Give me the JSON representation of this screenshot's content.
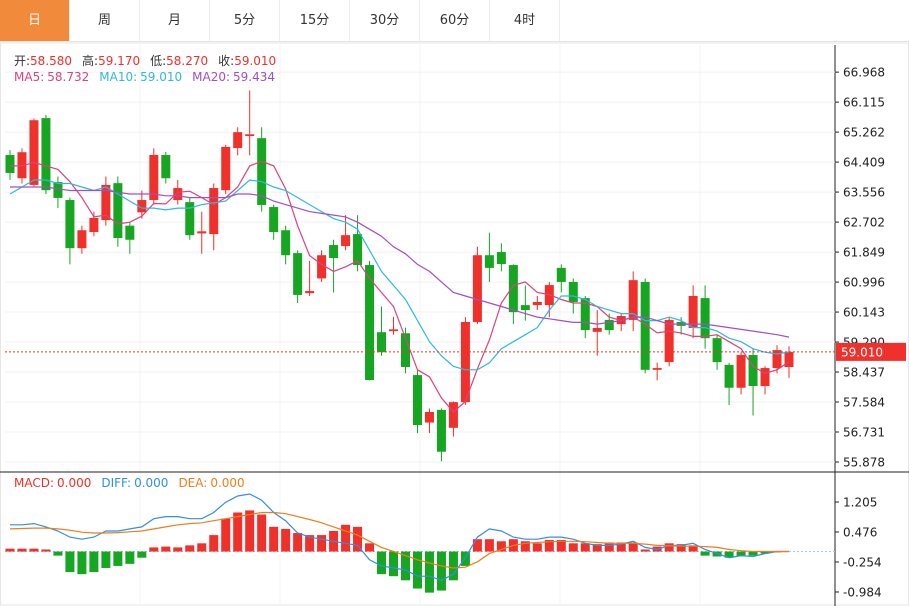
{
  "tabs": [
    "日",
    "周",
    "月",
    "5分",
    "15分",
    "30分",
    "60分",
    "4时"
  ],
  "quote": [
    {
      "label": "开:",
      "value": "58.580"
    },
    {
      "label": "高:",
      "value": "59.170"
    },
    {
      "label": "低:",
      "value": "58.270"
    },
    {
      "label": "收:",
      "value": "59.010"
    }
  ],
  "chart_data": [
    {
      "type": "candlestick",
      "up_color": "#f0302a",
      "down_color": "#16a622",
      "open": [
        64.61,
        63.95,
        63.76,
        65.66,
        63.84,
        63.33,
        61.96,
        62.42,
        62.76,
        63.81,
        62.6,
        62.98,
        63.33,
        64.61,
        63.33,
        63.27,
        62.38,
        62.36,
        63.61,
        64.81,
        65.15,
        65.09,
        63.13,
        62.47,
        61.82,
        60.68,
        61.1,
        62.05,
        62.02,
        62.36,
        61.48,
        59.57,
        59.6,
        59.54,
        58.35,
        57.0,
        57.36,
        56.85,
        57.58,
        59.86,
        61.76,
        61.85,
        61.48,
        60.34,
        60.34,
        60.34,
        61.4,
        61.0,
        60.54,
        59.58,
        59.92,
        59.8,
        59.92,
        61.0,
        58.5,
        58.72,
        59.86,
        59.69,
        60.54,
        59.4,
        58.64,
        57.99,
        58.92,
        58.04,
        58.55,
        58.58
      ],
      "high": [
        64.75,
        64.8,
        65.65,
        65.75,
        64.0,
        63.4,
        62.6,
        63.0,
        64.0,
        64.0,
        62.7,
        63.6,
        64.8,
        64.7,
        63.9,
        63.4,
        63.0,
        63.8,
        64.9,
        65.4,
        66.45,
        65.4,
        63.2,
        62.6,
        61.9,
        61.6,
        61.9,
        62.2,
        62.9,
        62.9,
        61.6,
        60.3,
        60.0,
        59.7,
        58.5,
        57.4,
        57.4,
        57.6,
        60.0,
        62.0,
        62.4,
        62.1,
        61.5,
        60.9,
        60.6,
        61.0,
        61.5,
        61.1,
        60.6,
        60.2,
        60.1,
        60.1,
        61.3,
        61.1,
        58.7,
        60.0,
        60.0,
        60.9,
        60.9,
        59.5,
        58.7,
        59.0,
        59.1,
        58.6,
        59.2,
        59.17
      ],
      "low": [
        63.9,
        63.8,
        63.7,
        63.5,
        63.1,
        61.5,
        61.8,
        62.3,
        62.6,
        62.0,
        61.8,
        62.8,
        63.2,
        63.8,
        63.2,
        62.2,
        61.8,
        61.9,
        63.5,
        64.6,
        64.6,
        63.0,
        62.2,
        61.5,
        60.4,
        60.6,
        61.0,
        60.7,
        61.9,
        61.3,
        58.2,
        58.9,
        59.5,
        58.4,
        56.7,
        56.7,
        55.9,
        56.6,
        57.5,
        59.8,
        61.0,
        61.3,
        59.8,
        59.9,
        60.2,
        60.0,
        60.7,
        60.1,
        59.4,
        58.9,
        59.5,
        59.6,
        59.6,
        58.4,
        58.2,
        58.6,
        59.5,
        59.4,
        59.1,
        58.5,
        57.5,
        57.8,
        57.2,
        57.8,
        58.4,
        58.27
      ],
      "close": [
        64.1,
        64.69,
        65.6,
        63.61,
        63.39,
        61.96,
        62.47,
        62.82,
        63.76,
        62.25,
        62.2,
        63.33,
        64.61,
        63.95,
        63.67,
        62.33,
        62.44,
        63.67,
        64.84,
        65.26,
        65.2,
        63.19,
        62.42,
        61.76,
        60.63,
        60.74,
        61.76,
        61.68,
        62.33,
        61.48,
        58.21,
        59.0,
        59.65,
        58.58,
        56.93,
        57.3,
        56.17,
        57.58,
        59.86,
        61.76,
        61.4,
        61.51,
        60.14,
        60.2,
        60.43,
        60.91,
        61.0,
        60.43,
        59.63,
        59.69,
        59.63,
        60.03,
        61.05,
        58.5,
        58.55,
        59.92,
        59.75,
        60.6,
        59.4,
        58.72,
        57.99,
        58.92,
        58.04,
        58.55,
        59.06,
        59.01
      ],
      "series": [
        {
          "name": "MA5:",
          "value_label": "58.732",
          "color": "#e0407f",
          "values": [
            64.3,
            64.3,
            64.4,
            64.3,
            64.2,
            63.85,
            63.4,
            62.85,
            62.9,
            62.65,
            62.7,
            62.87,
            63.23,
            63.22,
            63.55,
            63.58,
            63.4,
            63.2,
            63.4,
            63.7,
            64.3,
            64.43,
            64.3,
            63.65,
            62.6,
            61.75,
            61.5,
            61.3,
            61.43,
            61.6,
            61.1,
            60.7,
            60.3,
            59.4,
            58.5,
            58.3,
            57.7,
            57.3,
            57.6,
            58.53,
            59.35,
            60.4,
            60.9,
            61.0,
            60.7,
            60.64,
            60.5,
            60.4,
            60.4,
            60.3,
            60.0,
            59.9,
            60.0,
            59.8,
            59.55,
            59.6,
            59.55,
            59.45,
            59.45,
            59.5,
            59.3,
            59.1,
            58.6,
            58.4,
            58.5,
            58.73
          ]
        },
        {
          "name": "MA10:",
          "value_label": "59.010",
          "color": "#2fb8e0",
          "values": [
            63.5,
            63.7,
            63.9,
            63.9,
            63.8,
            63.8,
            63.7,
            63.6,
            63.7,
            63.5,
            63.3,
            63.1,
            63.1,
            63.05,
            63.1,
            63.1,
            63.2,
            63.25,
            63.3,
            63.6,
            63.9,
            63.85,
            63.7,
            63.6,
            63.4,
            63.2,
            63.0,
            62.8,
            62.7,
            62.5,
            61.9,
            61.3,
            60.9,
            60.5,
            59.9,
            59.3,
            58.9,
            58.6,
            58.5,
            58.5,
            58.7,
            59.1,
            59.3,
            59.5,
            59.7,
            60.2,
            60.6,
            60.6,
            60.5,
            60.3,
            60.2,
            60.1,
            60.1,
            59.9,
            59.9,
            60.0,
            59.9,
            59.7,
            59.7,
            59.6,
            59.4,
            59.3,
            59.1,
            59.0,
            58.95,
            59.01
          ]
        },
        {
          "name": "MA20:",
          "value_label": "59.434",
          "color": "#a24fc4",
          "values": [
            63.7,
            63.7,
            63.7,
            63.7,
            63.65,
            63.6,
            63.6,
            63.6,
            63.6,
            63.55,
            63.5,
            63.5,
            63.5,
            63.45,
            63.45,
            63.4,
            63.4,
            63.4,
            63.4,
            63.5,
            63.5,
            63.45,
            63.3,
            63.2,
            63.1,
            63.0,
            62.95,
            62.9,
            62.85,
            62.7,
            62.5,
            62.3,
            62.0,
            61.8,
            61.5,
            61.3,
            61.0,
            60.7,
            60.6,
            60.5,
            60.4,
            60.3,
            60.2,
            60.1,
            60.0,
            59.95,
            59.9,
            59.85,
            59.85,
            59.8,
            59.85,
            59.9,
            60.0,
            60.0,
            59.9,
            59.8,
            59.8,
            59.8,
            59.8,
            59.75,
            59.7,
            59.65,
            59.6,
            59.55,
            59.5,
            59.43
          ]
        }
      ],
      "last": {
        "value": 59.01,
        "label": "59.010"
      },
      "ylim": [
        55.65,
        67.74
      ],
      "yticks": [
        66.968,
        66.115,
        65.262,
        64.409,
        63.556,
        62.702,
        61.849,
        60.996,
        60.143,
        {
          "value": 59.29,
          "label": "59.290"
        },
        58.437,
        57.584,
        56.731,
        55.878
      ],
      "grid": true
    },
    {
      "type": "macd",
      "up_color": "#f0302a",
      "down_color": "#16a622",
      "series": [
        {
          "name": "MACD:",
          "value_label": "0.000",
          "color": "#f0302a",
          "values": [
            0.07,
            0.07,
            0.07,
            0.05,
            -0.1,
            -0.5,
            -0.55,
            -0.5,
            -0.4,
            -0.35,
            -0.3,
            -0.15,
            0.1,
            0.12,
            0.1,
            0.15,
            0.2,
            0.4,
            0.8,
            0.95,
            1.0,
            0.9,
            0.6,
            0.55,
            0.45,
            0.4,
            0.4,
            0.5,
            0.65,
            0.6,
            0.2,
            -0.55,
            -0.6,
            -0.7,
            -0.9,
            -1.0,
            -0.95,
            -0.7,
            -0.35,
            0.3,
            0.3,
            0.25,
            0.3,
            0.25,
            0.2,
            0.28,
            0.28,
            0.2,
            0.2,
            0.18,
            0.22,
            0.22,
            0.22,
            0.05,
            0.12,
            0.2,
            0.18,
            0.15,
            -0.1,
            -0.12,
            -0.15,
            -0.12,
            -0.1,
            -0.05,
            -0.02,
            0.0
          ]
        },
        {
          "name": "DIFF:",
          "value_label": "0.000",
          "color": "#2f8fe8",
          "values": [
            0.65,
            0.65,
            0.68,
            0.6,
            0.5,
            0.35,
            0.3,
            0.35,
            0.5,
            0.5,
            0.55,
            0.6,
            0.8,
            0.85,
            0.85,
            0.8,
            0.8,
            0.95,
            1.2,
            1.35,
            1.4,
            1.25,
            0.95,
            0.75,
            0.45,
            0.35,
            0.3,
            0.25,
            0.2,
            0.15,
            -0.2,
            -0.35,
            -0.4,
            -0.45,
            -0.6,
            -0.6,
            -0.7,
            -0.55,
            -0.15,
            0.35,
            0.55,
            0.5,
            0.35,
            0.3,
            0.3,
            0.35,
            0.35,
            0.3,
            0.2,
            0.15,
            0.15,
            0.18,
            0.25,
            0.1,
            0.05,
            0.15,
            0.15,
            0.2,
            0.05,
            -0.05,
            -0.15,
            -0.1,
            -0.12,
            -0.05,
            0.0,
            0.0
          ]
        },
        {
          "name": "DEA:",
          "value_label": "0.000",
          "color": "#f07d1a",
          "values": [
            0.55,
            0.56,
            0.57,
            0.57,
            0.55,
            0.52,
            0.47,
            0.45,
            0.45,
            0.46,
            0.48,
            0.5,
            0.55,
            0.6,
            0.65,
            0.68,
            0.7,
            0.75,
            0.8,
            0.85,
            0.9,
            0.95,
            0.95,
            0.92,
            0.85,
            0.78,
            0.7,
            0.6,
            0.5,
            0.4,
            0.25,
            0.1,
            0.0,
            -0.1,
            -0.2,
            -0.28,
            -0.35,
            -0.4,
            -0.38,
            -0.25,
            -0.05,
            0.05,
            0.15,
            0.2,
            0.22,
            0.24,
            0.25,
            0.25,
            0.24,
            0.22,
            0.2,
            0.2,
            0.2,
            0.18,
            0.15,
            0.14,
            0.13,
            0.13,
            0.12,
            0.1,
            0.05,
            0.02,
            0.0,
            0.0,
            0.0,
            0.0
          ]
        }
      ],
      "ylim": [
        -1.325,
        1.862
      ],
      "yticks": [
        1.205,
        0.476,
        -0.254,
        -0.984
      ]
    }
  ]
}
